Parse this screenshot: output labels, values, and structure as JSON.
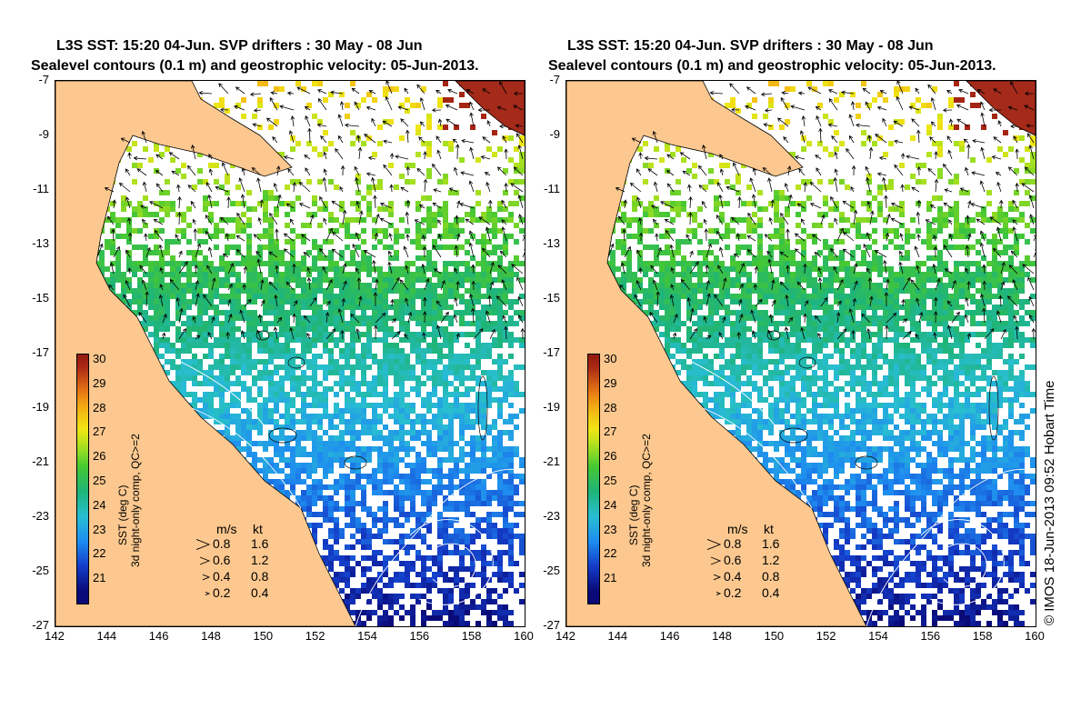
{
  "panels": [
    {
      "title_line1": "L3S SST: 15:20 04-Jun. SVP drifters : 30 May - 08 Jun",
      "title_line2": "Sealevel contours (0.1 m) and geostrophic velocity: 05-Jun-2013."
    },
    {
      "title_line1": "L3S SST: 15:20 04-Jun. SVP drifters : 30 May - 08 Jun",
      "title_line2": "Sealevel contours (0.1 m) and geostrophic velocity: 05-Jun-2013."
    }
  ],
  "axes": {
    "y_ticks": [
      "-7",
      "-9",
      "-11",
      "-13",
      "-15",
      "-17",
      "-19",
      "-21",
      "-23",
      "-25",
      "-27"
    ],
    "x_ticks": [
      "142",
      "144",
      "146",
      "148",
      "150",
      "152",
      "154",
      "156",
      "158",
      "160"
    ],
    "lat_range": [
      -27,
      -7
    ],
    "lon_range": [
      142,
      160
    ]
  },
  "colorbar": {
    "ticks": [
      "30",
      "29",
      "28",
      "27",
      "26",
      "25",
      "24",
      "23",
      "22",
      "21"
    ],
    "range": [
      20,
      30
    ],
    "label_line1": "SST (deg C)",
    "label_line2": "3d night-only comp, QC>=2"
  },
  "velocity_legend": {
    "header_ms": "m/s",
    "header_kt": "kt",
    "rows": [
      {
        "ms": "0.8",
        "kt": "1.6"
      },
      {
        "ms": "0.6",
        "kt": "1.2"
      },
      {
        "ms": "0.4",
        "kt": "0.8"
      },
      {
        "ms": "0.2",
        "kt": "0.4"
      }
    ]
  },
  "credit": "© IMOS 18-Jun-2013 09:52 Hobart Time",
  "colors": {
    "land": "#fcc88f",
    "cloud": "#ffffff",
    "coastline": "#000000"
  }
}
